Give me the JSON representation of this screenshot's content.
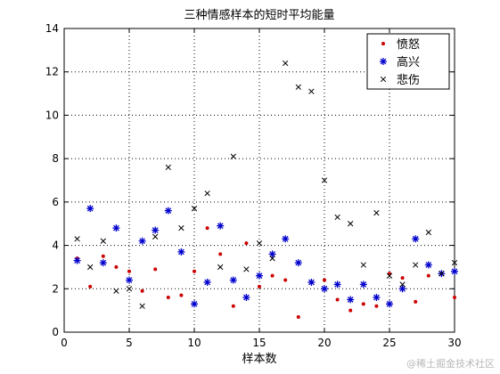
{
  "chart_data": {
    "type": "scatter",
    "title": "三种情感样本的短时平均能量",
    "xlabel": "样本数",
    "ylabel": "",
    "xlim": [
      0,
      30
    ],
    "ylim": [
      0,
      14
    ],
    "xticks": [
      0,
      5,
      10,
      15,
      20,
      25,
      30
    ],
    "yticks": [
      0,
      2,
      4,
      6,
      8,
      10,
      12,
      14
    ],
    "grid": true,
    "legend_position": "top-right",
    "series": [
      {
        "name": "愤怒",
        "marker": "dot",
        "color": "#cc0000",
        "x": [
          1,
          2,
          3,
          4,
          5,
          6,
          7,
          8,
          9,
          10,
          11,
          12,
          13,
          14,
          15,
          16,
          17,
          18,
          19,
          20,
          21,
          22,
          23,
          24,
          25,
          26,
          27,
          28,
          29,
          30
        ],
        "y": [
          3.4,
          2.1,
          3.5,
          3.0,
          2.8,
          1.9,
          2.9,
          1.6,
          1.7,
          2.8,
          4.8,
          3.6,
          1.2,
          4.1,
          2.1,
          2.6,
          2.4,
          0.7,
          2.3,
          2.4,
          1.5,
          1.0,
          1.3,
          1.2,
          2.7,
          2.5,
          1.4,
          2.6,
          2.7,
          1.6
        ]
      },
      {
        "name": "高兴",
        "marker": "star",
        "color": "#0000cc",
        "x": [
          1,
          2,
          3,
          4,
          5,
          6,
          7,
          8,
          9,
          10,
          11,
          12,
          13,
          14,
          15,
          16,
          17,
          18,
          19,
          20,
          21,
          22,
          23,
          24,
          25,
          26,
          27,
          28,
          29,
          30
        ],
        "y": [
          3.3,
          5.7,
          3.2,
          4.8,
          2.4,
          4.2,
          4.7,
          5.6,
          3.7,
          1.3,
          2.3,
          4.9,
          2.4,
          1.6,
          2.6,
          3.6,
          4.3,
          3.2,
          2.3,
          2.0,
          2.2,
          1.5,
          2.2,
          1.6,
          1.3,
          2.0,
          4.3,
          3.1,
          2.7,
          2.8
        ]
      },
      {
        "name": "悲伤",
        "marker": "x",
        "color": "#000000",
        "x": [
          1,
          2,
          3,
          4,
          5,
          6,
          7,
          8,
          9,
          10,
          11,
          12,
          13,
          14,
          15,
          16,
          17,
          18,
          19,
          20,
          21,
          22,
          23,
          24,
          25,
          26,
          27,
          28,
          29,
          30
        ],
        "y": [
          4.3,
          3.0,
          4.2,
          1.9,
          2.0,
          1.2,
          4.4,
          7.6,
          4.8,
          5.7,
          6.4,
          3.0,
          8.1,
          2.9,
          4.1,
          3.4,
          12.4,
          11.3,
          11.1,
          7.0,
          5.3,
          5.0,
          3.1,
          5.5,
          2.6,
          2.2,
          3.1,
          4.6,
          2.7,
          3.2
        ]
      }
    ]
  },
  "watermark": "@稀土掘金技术社区"
}
